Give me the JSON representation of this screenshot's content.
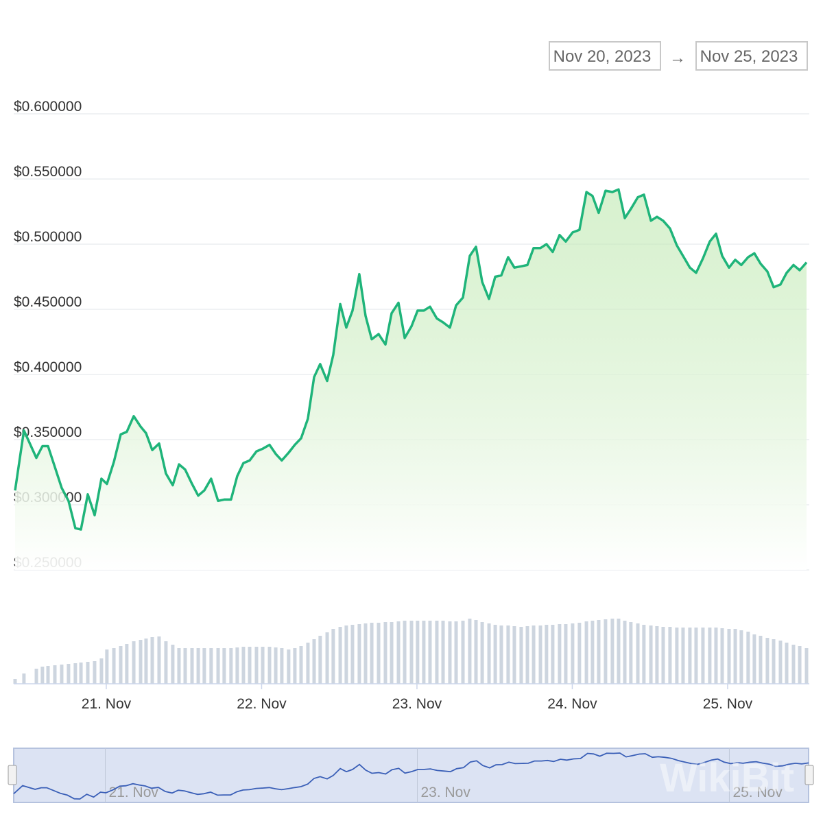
{
  "range_selector": {
    "start": "Nov 20, 2023",
    "separator": "→",
    "end": "Nov 25, 2023"
  },
  "watermark": "WikiBit",
  "chart_data": {
    "type": "line",
    "color": "#1fb47a",
    "volume_color": "#cdd5df",
    "navigator_color": "#3a5fb7",
    "grid": true,
    "xlim": [
      20.413,
      25.508
    ],
    "xticks": [
      {
        "value": 21,
        "label": "21. Nov"
      },
      {
        "value": 22,
        "label": "22. Nov"
      },
      {
        "value": 23,
        "label": "23. Nov"
      },
      {
        "value": 24,
        "label": "24. Nov"
      },
      {
        "value": 25,
        "label": "25. Nov"
      }
    ],
    "ylim": [
      0.25,
      0.6
    ],
    "yticks": [
      {
        "value": 0.25,
        "label": "$0.250000"
      },
      {
        "value": 0.3,
        "label": "$0.300000"
      },
      {
        "value": 0.35,
        "label": "$0.350000"
      },
      {
        "value": 0.4,
        "label": "$0.400000"
      },
      {
        "value": 0.45,
        "label": "$0.450000"
      },
      {
        "value": 0.5,
        "label": "$0.500000"
      },
      {
        "value": 0.55,
        "label": "$0.550000"
      },
      {
        "value": 0.6,
        "label": "$0.600000"
      }
    ],
    "x": [
      20.413,
      20.47,
      20.55,
      20.589,
      20.625,
      20.669,
      20.713,
      20.757,
      20.801,
      20.837,
      20.881,
      20.925,
      20.969,
      21.004,
      21.049,
      21.093,
      21.132,
      21.177,
      21.221,
      21.256,
      21.296,
      21.34,
      21.384,
      21.428,
      21.468,
      21.508,
      21.552,
      21.592,
      21.631,
      21.675,
      21.72,
      21.759,
      21.803,
      21.843,
      21.883,
      21.923,
      21.967,
      22.007,
      22.051,
      22.091,
      22.13,
      22.174,
      22.214,
      22.254,
      22.298,
      22.338,
      22.377,
      22.422,
      22.461,
      22.506,
      22.545,
      22.585,
      22.629,
      22.669,
      22.709,
      22.753,
      22.797,
      22.837,
      22.881,
      22.921,
      22.965,
      23.004,
      23.044,
      23.084,
      23.128,
      23.168,
      23.212,
      23.252,
      23.296,
      23.34,
      23.38,
      23.42,
      23.464,
      23.504,
      23.543,
      23.587,
      23.627,
      23.671,
      23.711,
      23.751,
      23.795,
      23.834,
      23.874,
      23.918,
      23.958,
      24.002,
      24.046,
      24.091,
      24.13,
      24.17,
      24.214,
      24.258,
      24.298,
      24.338,
      24.377,
      24.422,
      24.461,
      24.506,
      24.545,
      24.585,
      24.629,
      24.673,
      24.713,
      24.757,
      24.797,
      24.841,
      24.885,
      24.925,
      24.965,
      25.009,
      25.049,
      25.088,
      25.132,
      25.172,
      25.212,
      25.256,
      25.296,
      25.34,
      25.38,
      25.424,
      25.464,
      25.508
    ],
    "values": [
      0.311,
      0.357,
      0.336,
      0.345,
      0.345,
      0.329,
      0.313,
      0.303,
      0.282,
      0.281,
      0.308,
      0.292,
      0.32,
      0.316,
      0.333,
      0.354,
      0.356,
      0.368,
      0.36,
      0.355,
      0.342,
      0.347,
      0.324,
      0.315,
      0.331,
      0.327,
      0.316,
      0.307,
      0.311,
      0.32,
      0.303,
      0.304,
      0.304,
      0.322,
      0.332,
      0.334,
      0.341,
      0.343,
      0.346,
      0.339,
      0.334,
      0.34,
      0.346,
      0.351,
      0.366,
      0.398,
      0.408,
      0.395,
      0.415,
      0.454,
      0.436,
      0.449,
      0.477,
      0.445,
      0.427,
      0.431,
      0.423,
      0.447,
      0.455,
      0.428,
      0.437,
      0.449,
      0.449,
      0.452,
      0.443,
      0.44,
      0.436,
      0.453,
      0.459,
      0.491,
      0.498,
      0.471,
      0.458,
      0.475,
      0.476,
      0.49,
      0.482,
      0.483,
      0.484,
      0.497,
      0.497,
      0.5,
      0.494,
      0.507,
      0.502,
      0.509,
      0.511,
      0.54,
      0.537,
      0.524,
      0.541,
      0.54,
      0.542,
      0.52,
      0.527,
      0.536,
      0.538,
      0.518,
      0.521,
      0.518,
      0.512,
      0.499,
      0.491,
      0.482,
      0.478,
      0.489,
      0.502,
      0.508,
      0.491,
      0.482,
      0.488,
      0.484,
      0.49,
      0.493,
      0.485,
      0.479,
      0.467,
      0.469,
      0.478,
      0.484,
      0.48,
      0.486
    ],
    "volume": [
      7,
      15,
      22,
      25,
      26,
      27,
      28,
      29,
      30,
      31,
      32,
      33,
      37,
      50,
      52,
      55,
      58,
      62,
      64,
      66,
      68,
      69,
      62,
      57,
      52,
      52,
      52,
      52,
      52,
      52,
      52,
      52,
      52,
      53,
      54,
      54,
      54,
      54,
      54,
      53,
      52,
      50,
      52,
      55,
      60,
      65,
      70,
      75,
      80,
      83,
      85,
      86,
      87,
      88,
      89,
      89,
      90,
      90,
      91,
      92,
      92,
      92,
      92,
      92,
      92,
      92,
      91,
      91,
      92,
      95,
      93,
      90,
      88,
      86,
      85,
      85,
      84,
      83,
      84,
      85,
      85,
      86,
      86,
      87,
      87,
      88,
      89,
      91,
      92,
      93,
      94,
      95,
      95,
      92,
      90,
      88,
      86,
      85,
      84,
      83,
      83,
      82,
      82,
      82,
      82,
      82,
      82,
      82,
      81,
      80,
      80,
      78,
      76,
      72,
      70,
      67,
      65,
      63,
      60,
      57,
      55,
      52
    ]
  }
}
